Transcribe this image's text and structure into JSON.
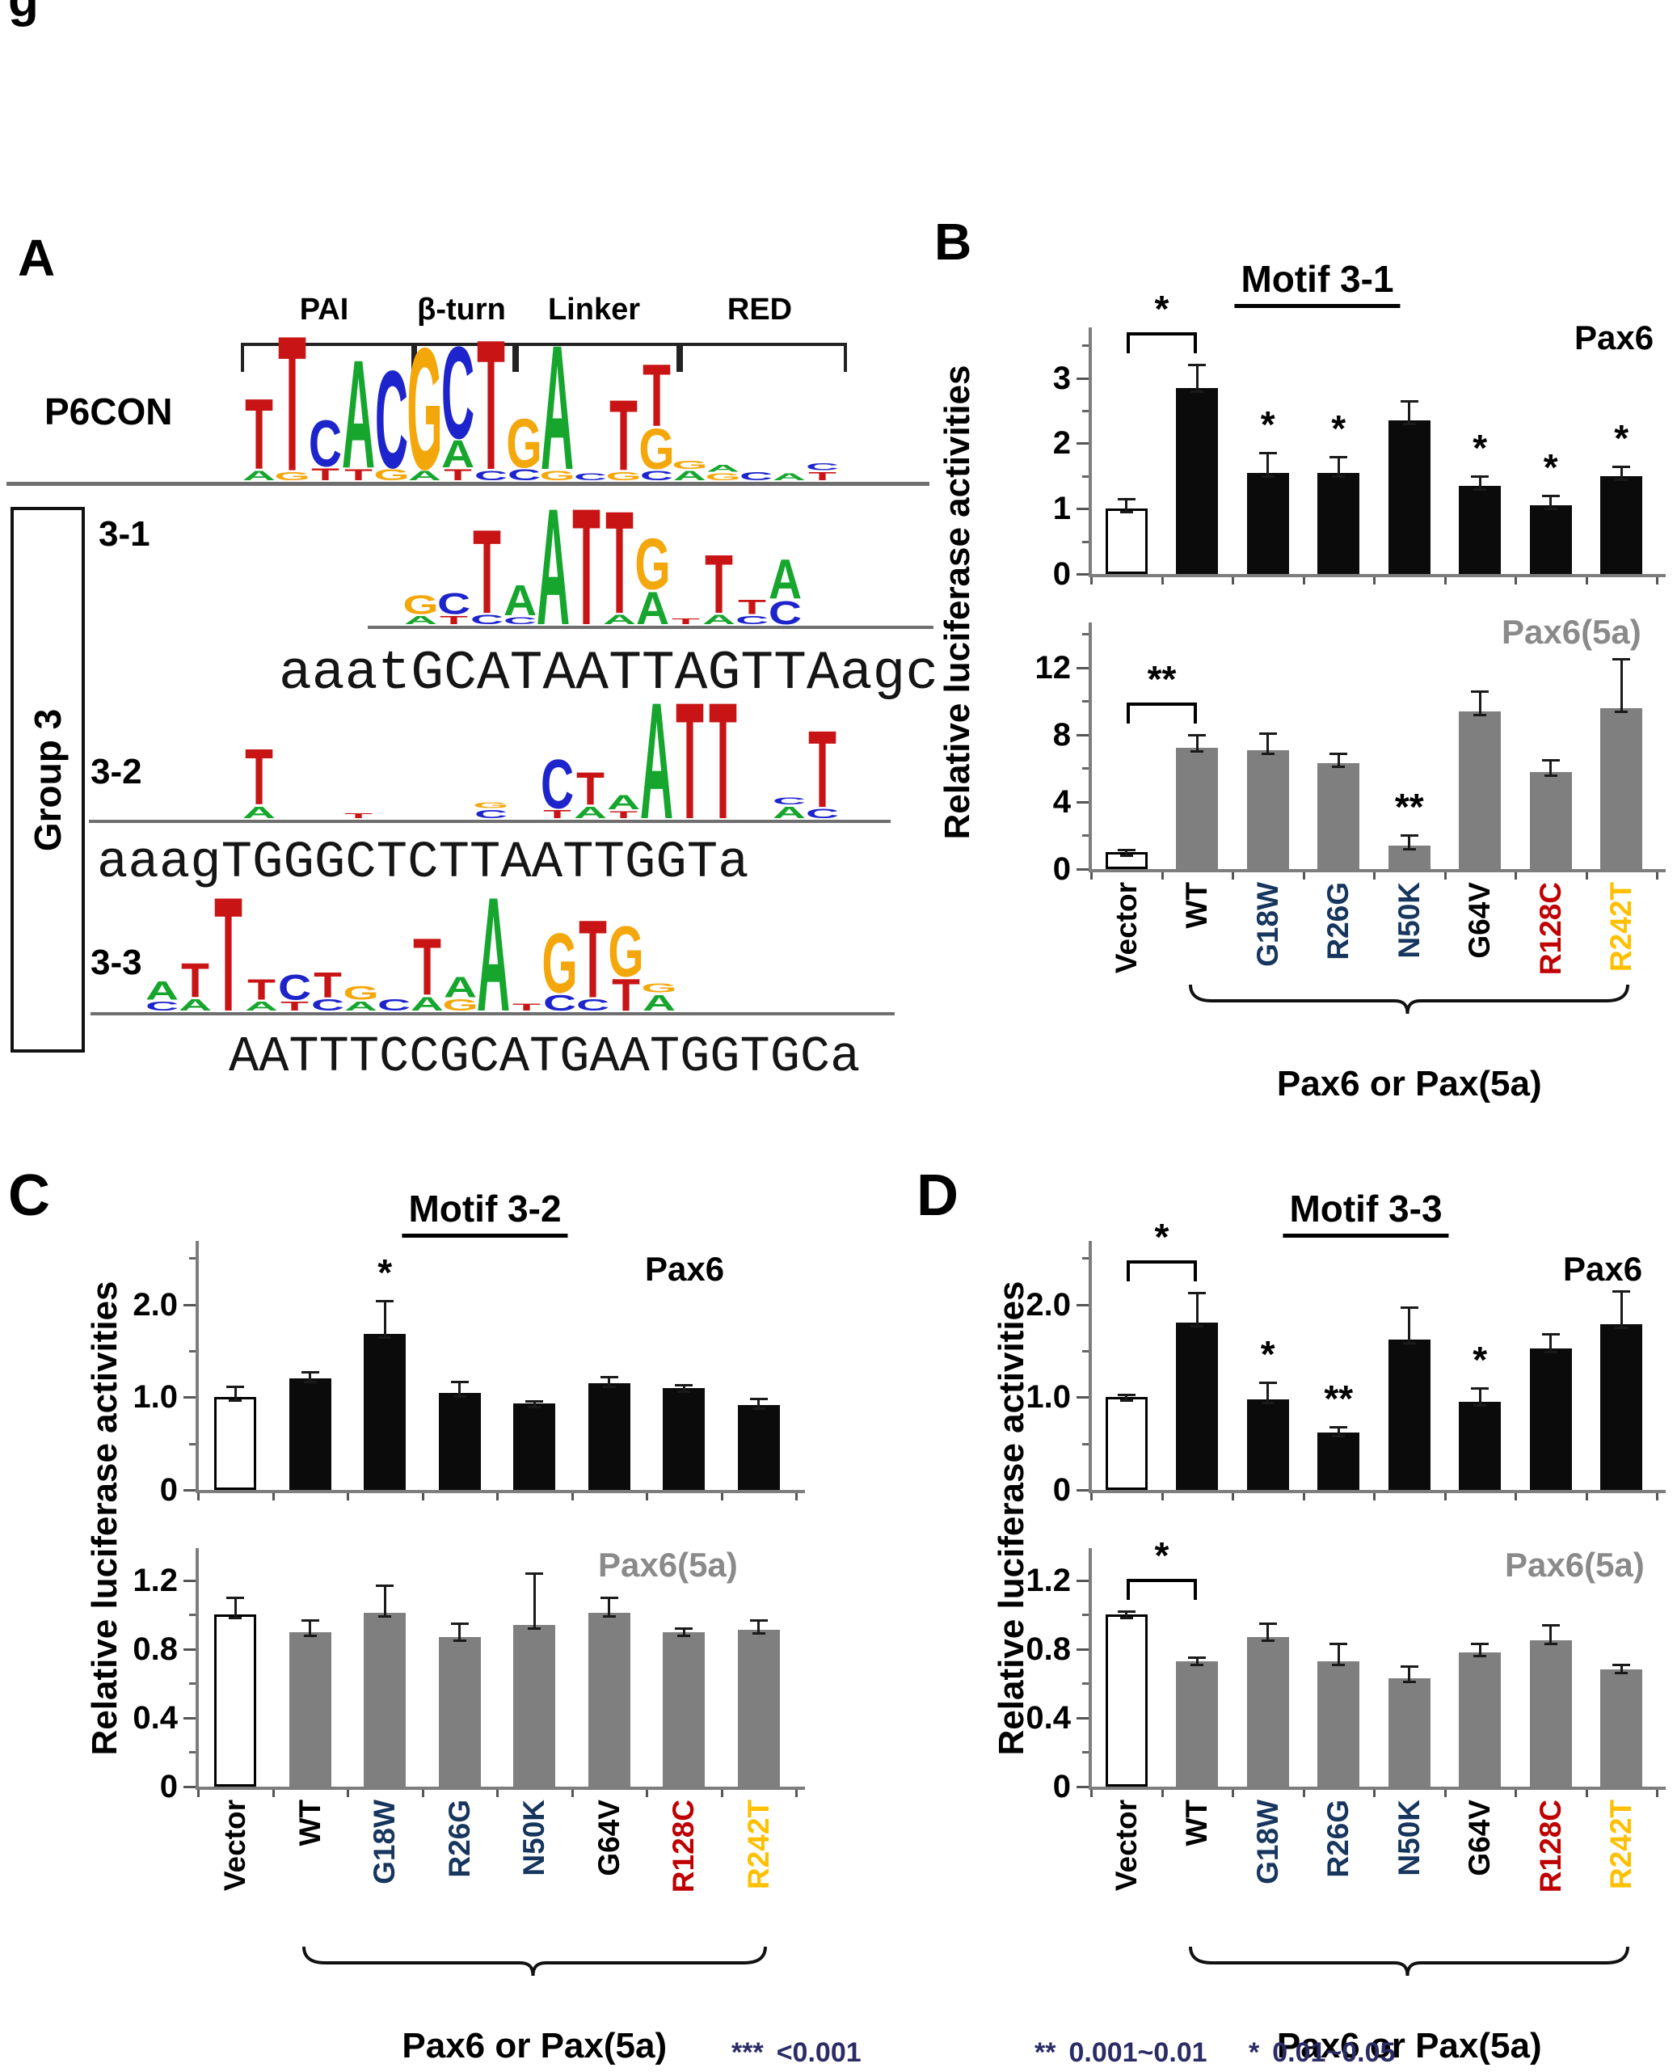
{
  "corner_fragment": "g",
  "panelA": {
    "label": "A",
    "p6con_label": "P6CON",
    "group_label": "Group 3",
    "domains": [
      {
        "label": "PAI"
      },
      {
        "label": "β-turn"
      },
      {
        "label": "Linker"
      },
      {
        "label": "RED"
      }
    ],
    "motif_rows": [
      {
        "label": "3-1",
        "sequence": "aaatGCATAATTAGTTAagc"
      },
      {
        "label": "3-2",
        "sequence": "aaagTGGGCTCTTAATTGGTa"
      },
      {
        "label": "3-3",
        "sequence": "AATTTCCGCATGAATGGTGCa"
      }
    ],
    "logos": {
      "p6con": [
        [
          [
            "A",
            0.07
          ],
          [
            "T",
            0.52
          ]
        ],
        [
          [
            "G",
            0.06
          ],
          [
            "T",
            1.0
          ]
        ],
        [
          [
            "T",
            0.09
          ],
          [
            "C",
            0.34
          ]
        ],
        [
          [
            "T",
            0.08
          ],
          [
            "A",
            0.8
          ]
        ],
        [
          [
            "G",
            0.08
          ],
          [
            "C",
            0.72
          ]
        ],
        [
          [
            "A",
            0.07
          ],
          [
            "G",
            0.9
          ]
        ],
        [
          [
            "T",
            0.08
          ],
          [
            "A",
            0.2
          ],
          [
            "C",
            0.68
          ]
        ],
        [
          [
            "C",
            0.07
          ],
          [
            "T",
            0.96
          ]
        ],
        [
          [
            "C",
            0.08
          ],
          [
            "G",
            0.36
          ]
        ],
        [
          [
            "G",
            0.07
          ],
          [
            "A",
            0.92
          ]
        ],
        [
          [
            "C",
            0.05
          ]
        ],
        [
          [
            "G",
            0.06
          ],
          [
            "T",
            0.52
          ]
        ],
        [
          [
            "C",
            0.07
          ],
          [
            "G",
            0.3
          ],
          [
            "T",
            0.46
          ]
        ],
        [
          [
            "A",
            0.07
          ],
          [
            "G",
            0.06
          ]
        ],
        [
          [
            "G",
            0.05
          ],
          [
            "A",
            0.05
          ]
        ],
        [
          [
            "C",
            0.06
          ]
        ],
        [
          [
            "A",
            0.05
          ]
        ],
        [
          [
            "T",
            0.06
          ],
          [
            "C",
            0.05
          ]
        ]
      ],
      "m31": [
        [
          [
            "A",
            0.07
          ],
          [
            "G",
            0.16
          ]
        ],
        [
          [
            "T",
            0.07
          ],
          [
            "C",
            0.18
          ]
        ],
        [
          [
            "C",
            0.08
          ],
          [
            "T",
            0.72
          ]
        ],
        [
          [
            "C",
            0.06
          ],
          [
            "A",
            0.26
          ]
        ],
        [
          [
            "A",
            1.0
          ]
        ],
        [
          [
            "T",
            1.0
          ]
        ],
        [
          [
            "A",
            0.08
          ],
          [
            "T",
            0.88
          ]
        ],
        [
          [
            "A",
            0.28
          ],
          [
            "G",
            0.44
          ]
        ],
        [
          [
            "T",
            0.05
          ]
        ],
        [
          [
            "A",
            0.08
          ],
          [
            "T",
            0.5
          ]
        ],
        [
          [
            "C",
            0.07
          ],
          [
            "T",
            0.12
          ]
        ],
        [
          [
            "C",
            0.2
          ],
          [
            "A",
            0.34
          ]
        ]
      ],
      "m32": [
        [
          [
            "A",
            0.1
          ],
          [
            "T",
            0.48
          ]
        ],
        [],
        [],
        [
          [
            "T",
            0.04
          ]
        ],
        [],
        [],
        [],
        [
          [
            "C",
            0.07
          ],
          [
            "G",
            0.05
          ]
        ],
        [],
        [
          [
            "T",
            0.07
          ],
          [
            "C",
            0.42
          ]
        ],
        [
          [
            "A",
            0.1
          ],
          [
            "T",
            0.28
          ]
        ],
        [
          [
            "T",
            0.06
          ],
          [
            "A",
            0.12
          ]
        ],
        [
          [
            "A",
            1.0
          ]
        ],
        [
          [
            "T",
            1.0
          ]
        ],
        [
          [
            "T",
            1.0
          ]
        ],
        [],
        [
          [
            "A",
            0.1
          ],
          [
            "C",
            0.06
          ]
        ],
        [
          [
            "C",
            0.08
          ],
          [
            "T",
            0.66
          ]
        ]
      ],
      "m33": [
        [
          [
            "C",
            0.08
          ],
          [
            "A",
            0.16
          ]
        ],
        [
          [
            "A",
            0.1
          ],
          [
            "T",
            0.3
          ]
        ],
        [
          [
            "T",
            1.0
          ]
        ],
        [
          [
            "A",
            0.08
          ],
          [
            "T",
            0.18
          ]
        ],
        [
          [
            "T",
            0.08
          ],
          [
            "C",
            0.22
          ]
        ],
        [
          [
            "C",
            0.1
          ],
          [
            "T",
            0.22
          ]
        ],
        [
          [
            "A",
            0.08
          ],
          [
            "G",
            0.12
          ]
        ],
        [
          [
            "C",
            0.1
          ]
        ],
        [
          [
            "A",
            0.12
          ],
          [
            "T",
            0.5
          ]
        ],
        [
          [
            "G",
            0.1
          ],
          [
            "A",
            0.18
          ]
        ],
        [
          [
            "A",
            1.0
          ]
        ],
        [
          [
            "T",
            0.06
          ]
        ],
        [
          [
            "C",
            0.14
          ],
          [
            "G",
            0.52
          ]
        ],
        [
          [
            "C",
            0.1
          ],
          [
            "T",
            0.68
          ]
        ],
        [
          [
            "T",
            0.28
          ],
          [
            "G",
            0.44
          ]
        ],
        [
          [
            "A",
            0.14
          ],
          [
            "G",
            0.08
          ]
        ]
      ]
    }
  },
  "chart_data": {
    "type": "bar",
    "categories": [
      "Vector",
      "WT",
      "G18W",
      "R26G",
      "N50K",
      "G64V",
      "R128C",
      "R242T"
    ],
    "category_colors": [
      "#000000",
      "#000000",
      "#17365D",
      "#17365D",
      "#17365D",
      "#000000",
      "#C00000",
      "#FFC000"
    ],
    "ylabel": "Relative luciferase activities",
    "group_axis_label": "Pax6 or Pax(5a)",
    "panels": [
      {
        "panel": "B",
        "title": "Motif 3-1",
        "charts": [
          {
            "series": "Pax6",
            "bar_color": "#0b0b0b",
            "ylim": [
              0,
              3.65
            ],
            "yticks": [
              0,
              1,
              2,
              3
            ],
            "ytick_labels": [
              "0",
              "1",
              "2",
              "3"
            ],
            "values": [
              1.0,
              2.85,
              1.55,
              1.55,
              2.35,
              1.35,
              1.05,
              1.5
            ],
            "errors": [
              0.15,
              0.35,
              0.3,
              0.25,
              0.3,
              0.15,
              0.15,
              0.15
            ],
            "sig": [
              "",
              "",
              "*",
              "*",
              "",
              "*",
              "*",
              "*"
            ],
            "bracket": "*"
          },
          {
            "series": "Pax6(5a)",
            "bar_color": "#7f7f7f",
            "ylim": [
              0,
              14.2
            ],
            "yticks": [
              0,
              4,
              8,
              12
            ],
            "ytick_labels": [
              "0",
              "4",
              "8",
              "12"
            ],
            "values": [
              1.0,
              7.2,
              7.1,
              6.3,
              1.4,
              9.4,
              5.8,
              9.6
            ],
            "errors": [
              0.15,
              0.8,
              1.0,
              0.6,
              0.6,
              1.2,
              0.7,
              2.9
            ],
            "sig": [
              "",
              "",
              "",
              "",
              "**",
              "",
              "",
              ""
            ],
            "bracket": "**"
          }
        ]
      },
      {
        "panel": "C",
        "title": "Motif 3-2",
        "charts": [
          {
            "series": "Pax6",
            "bar_color": "#0b0b0b",
            "ylim": [
              0,
              2.6
            ],
            "yticks": [
              0,
              1,
              2
            ],
            "ytick_labels": [
              "0",
              "1.0",
              "2.0"
            ],
            "values": [
              1.0,
              1.2,
              1.68,
              1.05,
              0.93,
              1.15,
              1.1,
              0.92
            ],
            "errors": [
              0.12,
              0.07,
              0.36,
              0.12,
              0.03,
              0.07,
              0.03,
              0.07
            ],
            "sig": [
              "",
              "",
              "*",
              "",
              "",
              "",
              "",
              ""
            ],
            "bracket": ""
          },
          {
            "series": "Pax6(5a)",
            "bar_color": "#7f7f7f",
            "ylim": [
              0,
              1.34
            ],
            "yticks": [
              0,
              0.4,
              0.8,
              1.2
            ],
            "ytick_labels": [
              "0",
              "0.4",
              "0.8",
              "1.2"
            ],
            "values": [
              1.0,
              0.9,
              1.01,
              0.87,
              0.94,
              1.01,
              0.9,
              0.91
            ],
            "errors": [
              0.1,
              0.07,
              0.16,
              0.08,
              0.3,
              0.09,
              0.02,
              0.06
            ],
            "sig": [
              "",
              "",
              "",
              "",
              "",
              "",
              "",
              ""
            ],
            "bracket": ""
          }
        ]
      },
      {
        "panel": "D",
        "title": "Motif 3-3",
        "charts": [
          {
            "series": "Pax6",
            "bar_color": "#0b0b0b",
            "ylim": [
              0,
              2.6
            ],
            "yticks": [
              0,
              1,
              2
            ],
            "ytick_labels": [
              "0",
              "1.0",
              "2.0"
            ],
            "values": [
              1.0,
              1.81,
              0.98,
              0.62,
              1.62,
              0.95,
              1.53,
              1.79
            ],
            "errors": [
              0.03,
              0.32,
              0.18,
              0.06,
              0.35,
              0.15,
              0.15,
              0.36
            ],
            "sig": [
              "",
              "",
              "*",
              "**",
              "",
              "*",
              "",
              ""
            ],
            "bracket": "*"
          },
          {
            "series": "Pax6(5a)",
            "bar_color": "#7f7f7f",
            "ylim": [
              0,
              1.34
            ],
            "yticks": [
              0,
              0.4,
              0.8,
              1.2
            ],
            "ytick_labels": [
              "0",
              "0.4",
              "0.8",
              "1.2"
            ],
            "values": [
              1.0,
              0.73,
              0.87,
              0.73,
              0.63,
              0.78,
              0.85,
              0.68
            ],
            "errors": [
              0.02,
              0.02,
              0.08,
              0.1,
              0.07,
              0.05,
              0.09,
              0.03
            ],
            "sig": [
              "",
              "",
              "",
              "",
              "",
              "",
              "",
              ""
            ],
            "bracket": "*"
          }
        ]
      }
    ],
    "significance_legend": [
      {
        "symbol": "***",
        "range": "<0.001"
      },
      {
        "symbol": "**",
        "range": "0.001~0.01"
      },
      {
        "symbol": "*",
        "range": "0.01~0.05"
      }
    ]
  },
  "colors": {
    "logo_A": "#16a62e",
    "logo_C": "#1d24cc",
    "logo_G": "#f4a70b",
    "logo_T": "#c81414",
    "axis": "#7d7d7d",
    "bar_black": "#0b0b0b",
    "bar_gray": "#7f7f7f",
    "gray_label": "#8a8a8a",
    "legend_text": "#2b2b66"
  }
}
